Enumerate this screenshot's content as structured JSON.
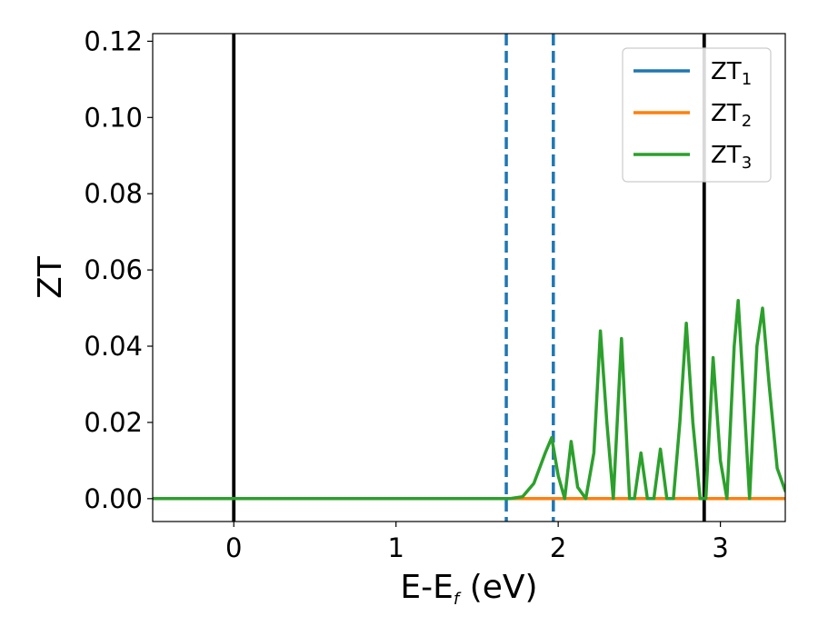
{
  "chart_data": {
    "type": "line",
    "xlabel": {
      "base": "E-E",
      "subscript": "f",
      "suffix": " (eV)"
    },
    "ylabel": "ZT",
    "xlim": [
      -0.5,
      3.4
    ],
    "ylim": [
      -0.006,
      0.122
    ],
    "x_ticks": [
      0,
      1,
      2,
      3
    ],
    "x_tick_labels": [
      "0",
      "1",
      "2",
      "3"
    ],
    "y_ticks": [
      0.0,
      0.02,
      0.04,
      0.06,
      0.08,
      0.1,
      0.12
    ],
    "y_tick_labels": [
      "0.00",
      "0.02",
      "0.04",
      "0.06",
      "0.08",
      "0.10",
      "0.12"
    ],
    "grid": false,
    "legend_position": "top-right",
    "vertical_lines": [
      {
        "x": 0.0,
        "style": "solid",
        "color": "#000000"
      },
      {
        "x": 2.9,
        "style": "solid",
        "color": "#000000"
      },
      {
        "x": 1.68,
        "style": "dashed",
        "color": "#1f77b4"
      },
      {
        "x": 1.97,
        "style": "dashed",
        "color": "#1f77b4"
      }
    ],
    "series": [
      {
        "name": "ZT",
        "subscript": "1",
        "color": "#1f77b4",
        "x": [
          -0.5,
          3.4
        ],
        "y": [
          0.0,
          0.0
        ]
      },
      {
        "name": "ZT",
        "subscript": "2",
        "color": "#ff7f0e",
        "x": [
          -0.5,
          3.4
        ],
        "y": [
          0.0,
          0.0
        ]
      },
      {
        "name": "ZT",
        "subscript": "3",
        "color": "#2ca02c",
        "x": [
          -0.5,
          1.7,
          1.78,
          1.85,
          1.92,
          1.96,
          2.0,
          2.04,
          2.08,
          2.12,
          2.17,
          2.22,
          2.26,
          2.3,
          2.34,
          2.39,
          2.44,
          2.47,
          2.51,
          2.55,
          2.59,
          2.63,
          2.67,
          2.71,
          2.75,
          2.79,
          2.83,
          2.875,
          2.91,
          2.955,
          3.0,
          3.04,
          3.085,
          3.11,
          3.14,
          3.18,
          3.225,
          3.26,
          3.3,
          3.35,
          3.4
        ],
        "y": [
          0.0,
          0.0,
          0.0005,
          0.004,
          0.012,
          0.016,
          0.006,
          0.0,
          0.015,
          0.003,
          0.0,
          0.012,
          0.044,
          0.02,
          0.0,
          0.042,
          0.0,
          0.0,
          0.012,
          0.0,
          0.0,
          0.013,
          0.0,
          0.0,
          0.02,
          0.046,
          0.02,
          0.0,
          0.0,
          0.037,
          0.01,
          0.0,
          0.04,
          0.052,
          0.03,
          0.0,
          0.04,
          0.05,
          0.03,
          0.008,
          0.002
        ]
      }
    ]
  }
}
